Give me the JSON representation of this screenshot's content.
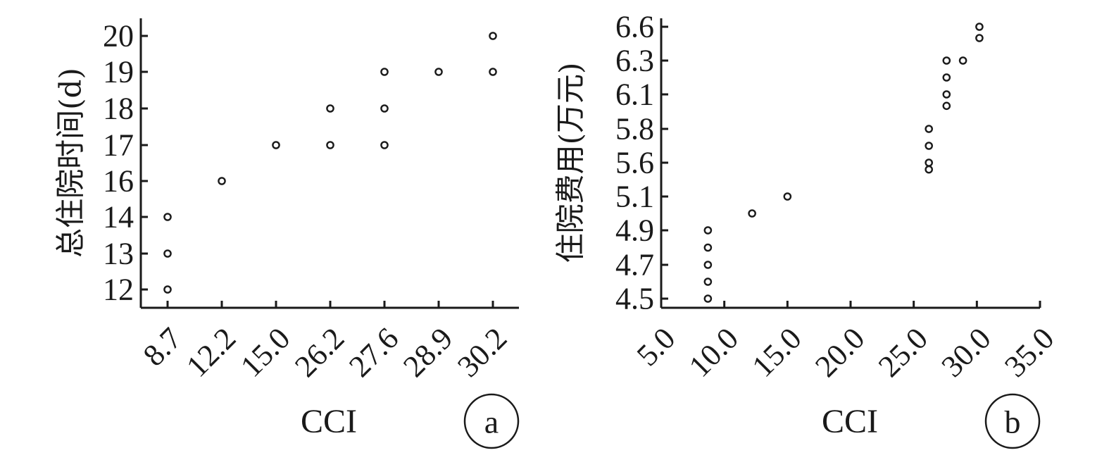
{
  "chart_data": [
    {
      "panel_label": "a",
      "type": "scatter",
      "xlabel": "CCI",
      "ylabel": "总住院时间(d)",
      "x_ticks": [
        "8.7",
        "12.2",
        "15.0",
        "26.2",
        "27.6",
        "28.9",
        "30.2"
      ],
      "y_ticks": [
        "12",
        "13",
        "14",
        "16",
        "17",
        "18",
        "19",
        "20"
      ],
      "x_scale": "categorical",
      "y_scale": "ordinal-categorical",
      "grid": false,
      "points": [
        {
          "x": "8.7",
          "y": 12
        },
        {
          "x": "8.7",
          "y": 13
        },
        {
          "x": "8.7",
          "y": 14
        },
        {
          "x": "12.2",
          "y": 16
        },
        {
          "x": "15.0",
          "y": 17
        },
        {
          "x": "26.2",
          "y": 17
        },
        {
          "x": "26.2",
          "y": 18
        },
        {
          "x": "27.6",
          "y": 17
        },
        {
          "x": "27.6",
          "y": 18
        },
        {
          "x": "27.6",
          "y": 19
        },
        {
          "x": "28.9",
          "y": 19
        },
        {
          "x": "30.2",
          "y": 19
        },
        {
          "x": "30.2",
          "y": 20
        }
      ]
    },
    {
      "panel_label": "b",
      "type": "scatter",
      "xlabel": "CCI",
      "ylabel": "住院费用(万元)",
      "x_ticks": [
        "5.0",
        "10.0",
        "15.0",
        "20.0",
        "25.0",
        "30.0",
        "35.0"
      ],
      "y_ticks": [
        "4.5",
        "4.7",
        "4.9",
        "5.1",
        "5.6",
        "5.8",
        "6.1",
        "6.3",
        "6.6"
      ],
      "x_scale": "linear",
      "xlim": [
        5.0,
        35.0
      ],
      "y_scale": "ordinal-categorical",
      "grid": false,
      "points": [
        {
          "x": 8.7,
          "y": 4.5
        },
        {
          "x": 8.7,
          "y": 4.6
        },
        {
          "x": 8.7,
          "y": 4.7
        },
        {
          "x": 8.7,
          "y": 4.8
        },
        {
          "x": 8.7,
          "y": 4.9
        },
        {
          "x": 12.2,
          "y": 5.0
        },
        {
          "x": 15.0,
          "y": 5.1
        },
        {
          "x": 26.2,
          "y": 5.5
        },
        {
          "x": 26.2,
          "y": 5.6
        },
        {
          "x": 26.2,
          "y": 5.7
        },
        {
          "x": 26.2,
          "y": 5.8
        },
        {
          "x": 27.6,
          "y": 6.0
        },
        {
          "x": 27.6,
          "y": 6.1
        },
        {
          "x": 27.6,
          "y": 6.2
        },
        {
          "x": 27.6,
          "y": 6.3
        },
        {
          "x": 28.9,
          "y": 6.3
        },
        {
          "x": 30.2,
          "y": 6.5
        },
        {
          "x": 30.2,
          "y": 6.6
        }
      ]
    }
  ]
}
